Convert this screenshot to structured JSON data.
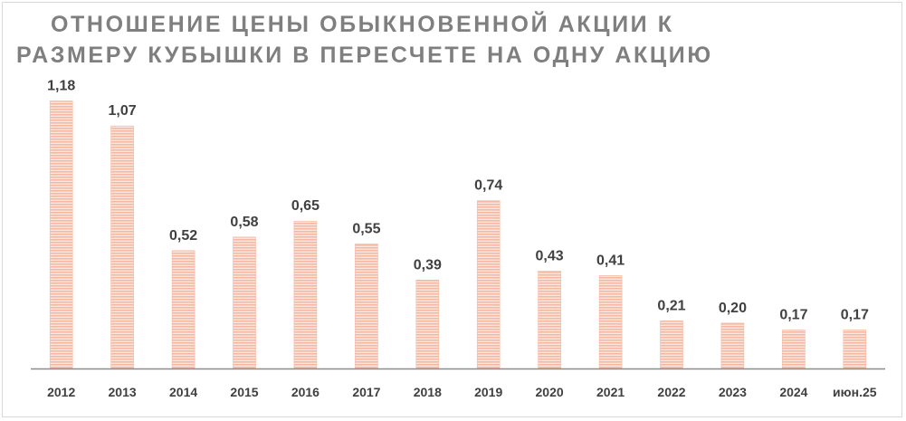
{
  "title_lines": [
    "ОТНОШЕНИЕ ЦЕНЫ ОБЫКНОВЕННОЙ АКЦИИ К",
    "РАЗМЕРУ КУБЫШКИ В ПЕРЕСЧЕТЕ НА ОДНУ АКЦИЮ"
  ],
  "colors": {
    "bar_stripe": "#f4b9a3",
    "bar_background": "#fde6dd",
    "axis": "#8c8c8c",
    "label": "#404040",
    "title": "#7f7f7f"
  },
  "chart_data": {
    "type": "bar",
    "title": "ОТНОШЕНИЕ ЦЕНЫ ОБЫКНОВЕННОЙ АКЦИИ К РАЗМЕРУ КУБЫШКИ В ПЕРЕСЧЕТЕ НА ОДНУ АКЦИЮ",
    "categories": [
      "2012",
      "2013",
      "2014",
      "2015",
      "2016",
      "2017",
      "2018",
      "2019",
      "2020",
      "2021",
      "2022",
      "2023",
      "2024",
      "июн.25"
    ],
    "values": [
      1.18,
      1.07,
      0.52,
      0.58,
      0.65,
      0.55,
      0.39,
      0.74,
      0.43,
      0.41,
      0.21,
      0.2,
      0.17,
      0.17
    ],
    "data_labels": [
      "1,18",
      "1,07",
      "0,52",
      "0,58",
      "0,65",
      "0,55",
      "0,39",
      "0,74",
      "0,43",
      "0,41",
      "0,21",
      "0,20",
      "0,17",
      "0,17"
    ],
    "xlabel": "",
    "ylabel": "",
    "ylim": [
      0,
      1.25
    ],
    "grid": false,
    "legend": "none"
  }
}
